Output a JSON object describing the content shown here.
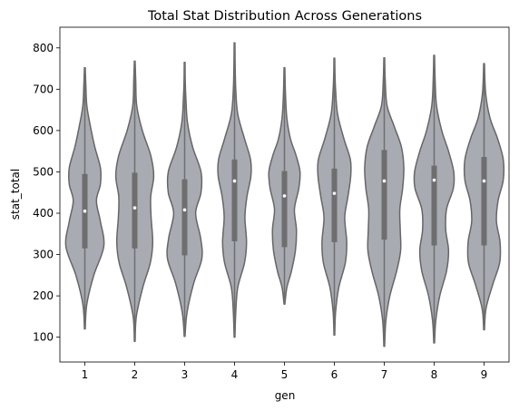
{
  "chart_data": {
    "type": "violin",
    "title": "Total Stat Distribution Across Generations",
    "xlabel": "gen",
    "ylabel": "stat_total",
    "categories": [
      "1",
      "2",
      "3",
      "4",
      "5",
      "6",
      "7",
      "8",
      "9"
    ],
    "ylim": [
      40,
      850
    ],
    "yticks": [
      100,
      200,
      300,
      400,
      500,
      600,
      700,
      800
    ],
    "grid": false,
    "colors": {
      "fill": "#a9abb3",
      "stroke": "#666666",
      "box": "#6e6e6e",
      "median": "#ffffff"
    },
    "series": [
      {
        "category": "1",
        "min": 120,
        "q1": 315,
        "median": 405,
        "q3": 495,
        "max": 752,
        "density": [
          [
            120,
            0.02
          ],
          [
            180,
            0.1
          ],
          [
            250,
            0.45
          ],
          [
            320,
            0.95
          ],
          [
            380,
            0.78
          ],
          [
            430,
            0.58
          ],
          [
            470,
            0.78
          ],
          [
            510,
            0.78
          ],
          [
            560,
            0.5
          ],
          [
            610,
            0.28
          ],
          [
            660,
            0.1
          ],
          [
            710,
            0.05
          ],
          [
            752,
            0.02
          ]
        ]
      },
      {
        "category": "2",
        "min": 90,
        "q1": 315,
        "median": 413,
        "q3": 498,
        "max": 768,
        "density": [
          [
            90,
            0.02
          ],
          [
            150,
            0.08
          ],
          [
            220,
            0.4
          ],
          [
            280,
            0.78
          ],
          [
            330,
            0.9
          ],
          [
            390,
            0.82
          ],
          [
            440,
            0.8
          ],
          [
            490,
            0.95
          ],
          [
            540,
            0.8
          ],
          [
            600,
            0.38
          ],
          [
            660,
            0.1
          ],
          [
            720,
            0.05
          ],
          [
            768,
            0.02
          ]
        ]
      },
      {
        "category": "3",
        "min": 102,
        "q1": 298,
        "median": 408,
        "q3": 482,
        "max": 765,
        "density": [
          [
            102,
            0.02
          ],
          [
            160,
            0.12
          ],
          [
            230,
            0.45
          ],
          [
            290,
            0.86
          ],
          [
            340,
            0.8
          ],
          [
            400,
            0.55
          ],
          [
            450,
            0.82
          ],
          [
            500,
            0.82
          ],
          [
            560,
            0.4
          ],
          [
            620,
            0.14
          ],
          [
            680,
            0.06
          ],
          [
            720,
            0.03
          ],
          [
            765,
            0.02
          ]
        ]
      },
      {
        "category": "4",
        "min": 100,
        "q1": 332,
        "median": 478,
        "q3": 530,
        "max": 812,
        "density": [
          [
            100,
            0.02
          ],
          [
            160,
            0.06
          ],
          [
            220,
            0.16
          ],
          [
            280,
            0.5
          ],
          [
            330,
            0.6
          ],
          [
            390,
            0.52
          ],
          [
            440,
            0.62
          ],
          [
            490,
            0.82
          ],
          [
            530,
            0.8
          ],
          [
            580,
            0.5
          ],
          [
            640,
            0.16
          ],
          [
            700,
            0.06
          ],
          [
            760,
            0.03
          ],
          [
            812,
            0.02
          ]
        ]
      },
      {
        "category": "5",
        "min": 180,
        "q1": 318,
        "median": 442,
        "q3": 502,
        "max": 752,
        "density": [
          [
            180,
            0.02
          ],
          [
            220,
            0.12
          ],
          [
            260,
            0.35
          ],
          [
            310,
            0.55
          ],
          [
            360,
            0.6
          ],
          [
            410,
            0.5
          ],
          [
            460,
            0.72
          ],
          [
            500,
            0.78
          ],
          [
            540,
            0.58
          ],
          [
            580,
            0.3
          ],
          [
            630,
            0.12
          ],
          [
            690,
            0.05
          ],
          [
            752,
            0.02
          ]
        ]
      },
      {
        "category": "6",
        "min": 105,
        "q1": 330,
        "median": 448,
        "q3": 508,
        "max": 775,
        "density": [
          [
            105,
            0.02
          ],
          [
            160,
            0.06
          ],
          [
            220,
            0.22
          ],
          [
            280,
            0.55
          ],
          [
            330,
            0.62
          ],
          [
            390,
            0.52
          ],
          [
            440,
            0.68
          ],
          [
            490,
            0.82
          ],
          [
            530,
            0.8
          ],
          [
            580,
            0.48
          ],
          [
            640,
            0.16
          ],
          [
            700,
            0.06
          ],
          [
            740,
            0.03
          ],
          [
            775,
            0.02
          ]
        ]
      },
      {
        "category": "7",
        "min": 78,
        "q1": 336,
        "median": 478,
        "q3": 553,
        "max": 776,
        "density": [
          [
            78,
            0.02
          ],
          [
            140,
            0.08
          ],
          [
            200,
            0.28
          ],
          [
            260,
            0.62
          ],
          [
            310,
            0.82
          ],
          [
            360,
            0.8
          ],
          [
            410,
            0.78
          ],
          [
            460,
            0.92
          ],
          [
            510,
            0.98
          ],
          [
            560,
            0.86
          ],
          [
            610,
            0.5
          ],
          [
            660,
            0.14
          ],
          [
            720,
            0.05
          ],
          [
            776,
            0.02
          ]
        ]
      },
      {
        "category": "8",
        "min": 86,
        "q1": 322,
        "median": 480,
        "q3": 515,
        "max": 782,
        "density": [
          [
            86,
            0.02
          ],
          [
            140,
            0.08
          ],
          [
            200,
            0.28
          ],
          [
            260,
            0.62
          ],
          [
            310,
            0.72
          ],
          [
            360,
            0.58
          ],
          [
            410,
            0.62
          ],
          [
            460,
            0.96
          ],
          [
            500,
            0.98
          ],
          [
            550,
            0.72
          ],
          [
            600,
            0.38
          ],
          [
            660,
            0.12
          ],
          [
            720,
            0.05
          ],
          [
            782,
            0.02
          ]
        ]
      },
      {
        "category": "9",
        "min": 118,
        "q1": 322,
        "median": 478,
        "q3": 536,
        "max": 762,
        "density": [
          [
            118,
            0.02
          ],
          [
            170,
            0.1
          ],
          [
            230,
            0.45
          ],
          [
            280,
            0.78
          ],
          [
            330,
            0.8
          ],
          [
            380,
            0.62
          ],
          [
            430,
            0.7
          ],
          [
            480,
            0.96
          ],
          [
            530,
            0.96
          ],
          [
            580,
            0.68
          ],
          [
            630,
            0.3
          ],
          [
            690,
            0.08
          ],
          [
            762,
            0.02
          ]
        ]
      }
    ]
  }
}
